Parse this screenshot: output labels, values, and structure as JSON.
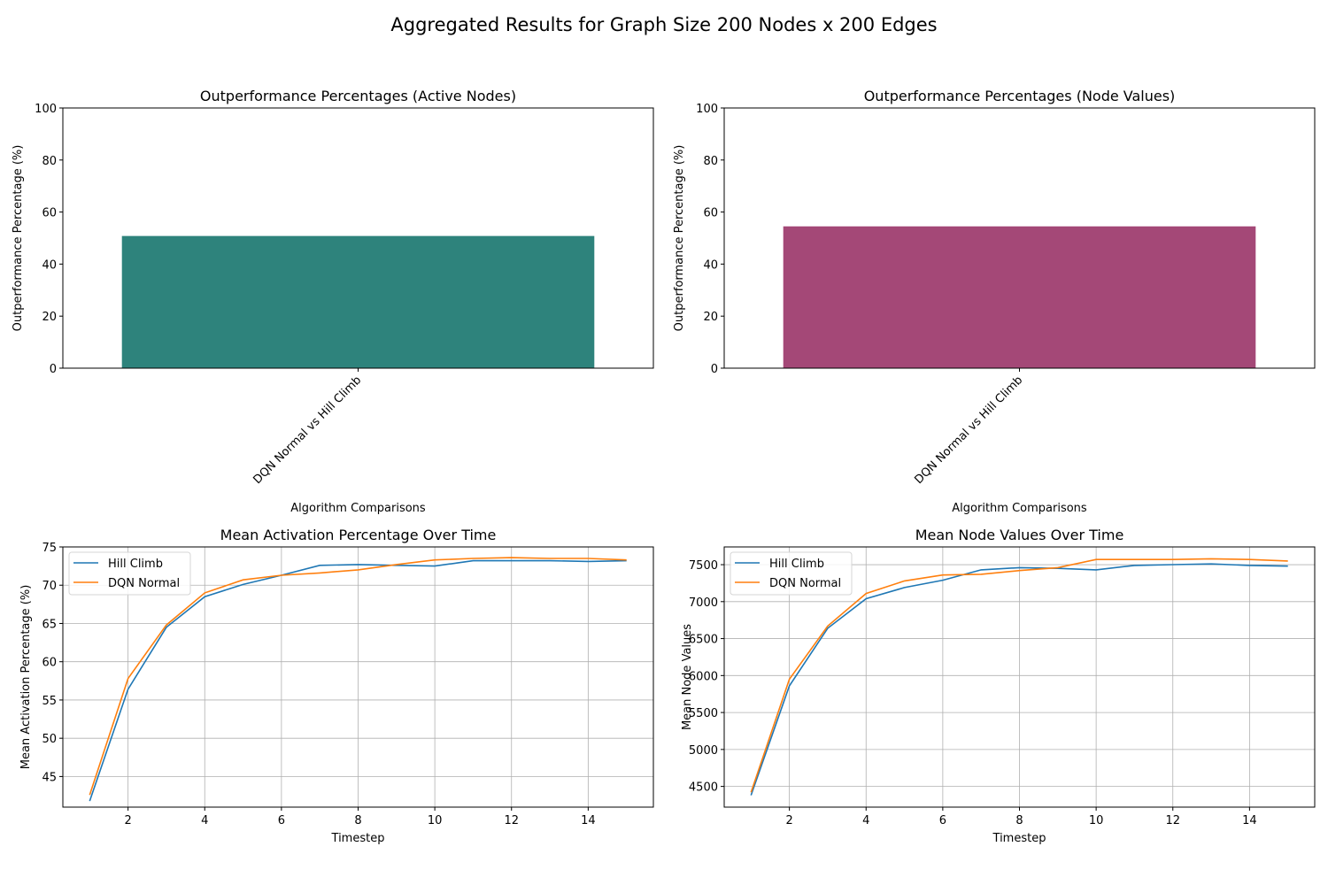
{
  "figure_title": "Aggregated Results for Graph Size 200 Nodes x 200 Edges",
  "chart_data": [
    {
      "type": "bar",
      "title": "Outperformance Percentages (Active Nodes)",
      "xlabel": "Algorithm Comparisons",
      "ylabel": "Outperformance Percentage (%)",
      "categories": [
        "DQN Normal vs Hill Climb"
      ],
      "values": [
        50.8
      ],
      "ylim": [
        0,
        100
      ],
      "yticks": [
        0,
        20,
        40,
        60,
        80,
        100
      ],
      "bar_color": "#2e837c",
      "grid": false
    },
    {
      "type": "bar",
      "title": "Outperformance Percentages (Node Values)",
      "xlabel": "Algorithm Comparisons",
      "ylabel": "Outperformance Percentage (%)",
      "categories": [
        "DQN Normal vs Hill Climb"
      ],
      "values": [
        54.5
      ],
      "ylim": [
        0,
        100
      ],
      "yticks": [
        0,
        20,
        40,
        60,
        80,
        100
      ],
      "bar_color": "#a44877",
      "grid": false
    },
    {
      "type": "line",
      "title": "Mean Activation Percentage Over Time",
      "xlabel": "Timestep",
      "ylabel": "Mean Activation Percentage (%)",
      "x": [
        1,
        2,
        3,
        4,
        5,
        6,
        7,
        8,
        9,
        10,
        11,
        12,
        13,
        14,
        15
      ],
      "xlim": [
        0.3,
        15.7
      ],
      "ylim": [
        41.0,
        75.0
      ],
      "xticks": [
        2,
        4,
        6,
        8,
        10,
        12,
        14
      ],
      "yticks": [
        45,
        50,
        55,
        60,
        65,
        70,
        75
      ],
      "grid": true,
      "legend_position": "upper-left",
      "series": [
        {
          "name": "Hill Climb",
          "color": "#1f77b4",
          "values": [
            41.8,
            56.4,
            64.5,
            68.5,
            70.1,
            71.3,
            72.6,
            72.7,
            72.6,
            72.5,
            73.2,
            73.2,
            73.2,
            73.1,
            73.2
          ]
        },
        {
          "name": "DQN Normal",
          "color": "#ff7f0e",
          "values": [
            42.6,
            57.8,
            64.8,
            69.0,
            70.7,
            71.3,
            71.6,
            72.0,
            72.7,
            73.3,
            73.5,
            73.6,
            73.5,
            73.5,
            73.3
          ]
        }
      ]
    },
    {
      "type": "line",
      "title": "Mean Node Values Over Time",
      "xlabel": "Timestep",
      "ylabel": "Mean Node Values",
      "x": [
        1,
        2,
        3,
        4,
        5,
        6,
        7,
        8,
        9,
        10,
        11,
        12,
        13,
        14,
        15
      ],
      "xlim": [
        0.3,
        15.7
      ],
      "ylim": [
        4220,
        7740
      ],
      "xticks": [
        2,
        4,
        6,
        8,
        10,
        12,
        14
      ],
      "yticks": [
        4500,
        5000,
        5500,
        6000,
        6500,
        7000,
        7500
      ],
      "grid": true,
      "legend_position": "upper-left",
      "series": [
        {
          "name": "Hill Climb",
          "color": "#1f77b4",
          "values": [
            4380,
            5860,
            6640,
            7040,
            7190,
            7290,
            7430,
            7460,
            7450,
            7430,
            7490,
            7500,
            7510,
            7490,
            7480
          ]
        },
        {
          "name": "DQN Normal",
          "color": "#ff7f0e",
          "values": [
            4420,
            5950,
            6670,
            7110,
            7280,
            7360,
            7370,
            7420,
            7460,
            7570,
            7570,
            7570,
            7580,
            7570,
            7550
          ]
        }
      ]
    }
  ]
}
